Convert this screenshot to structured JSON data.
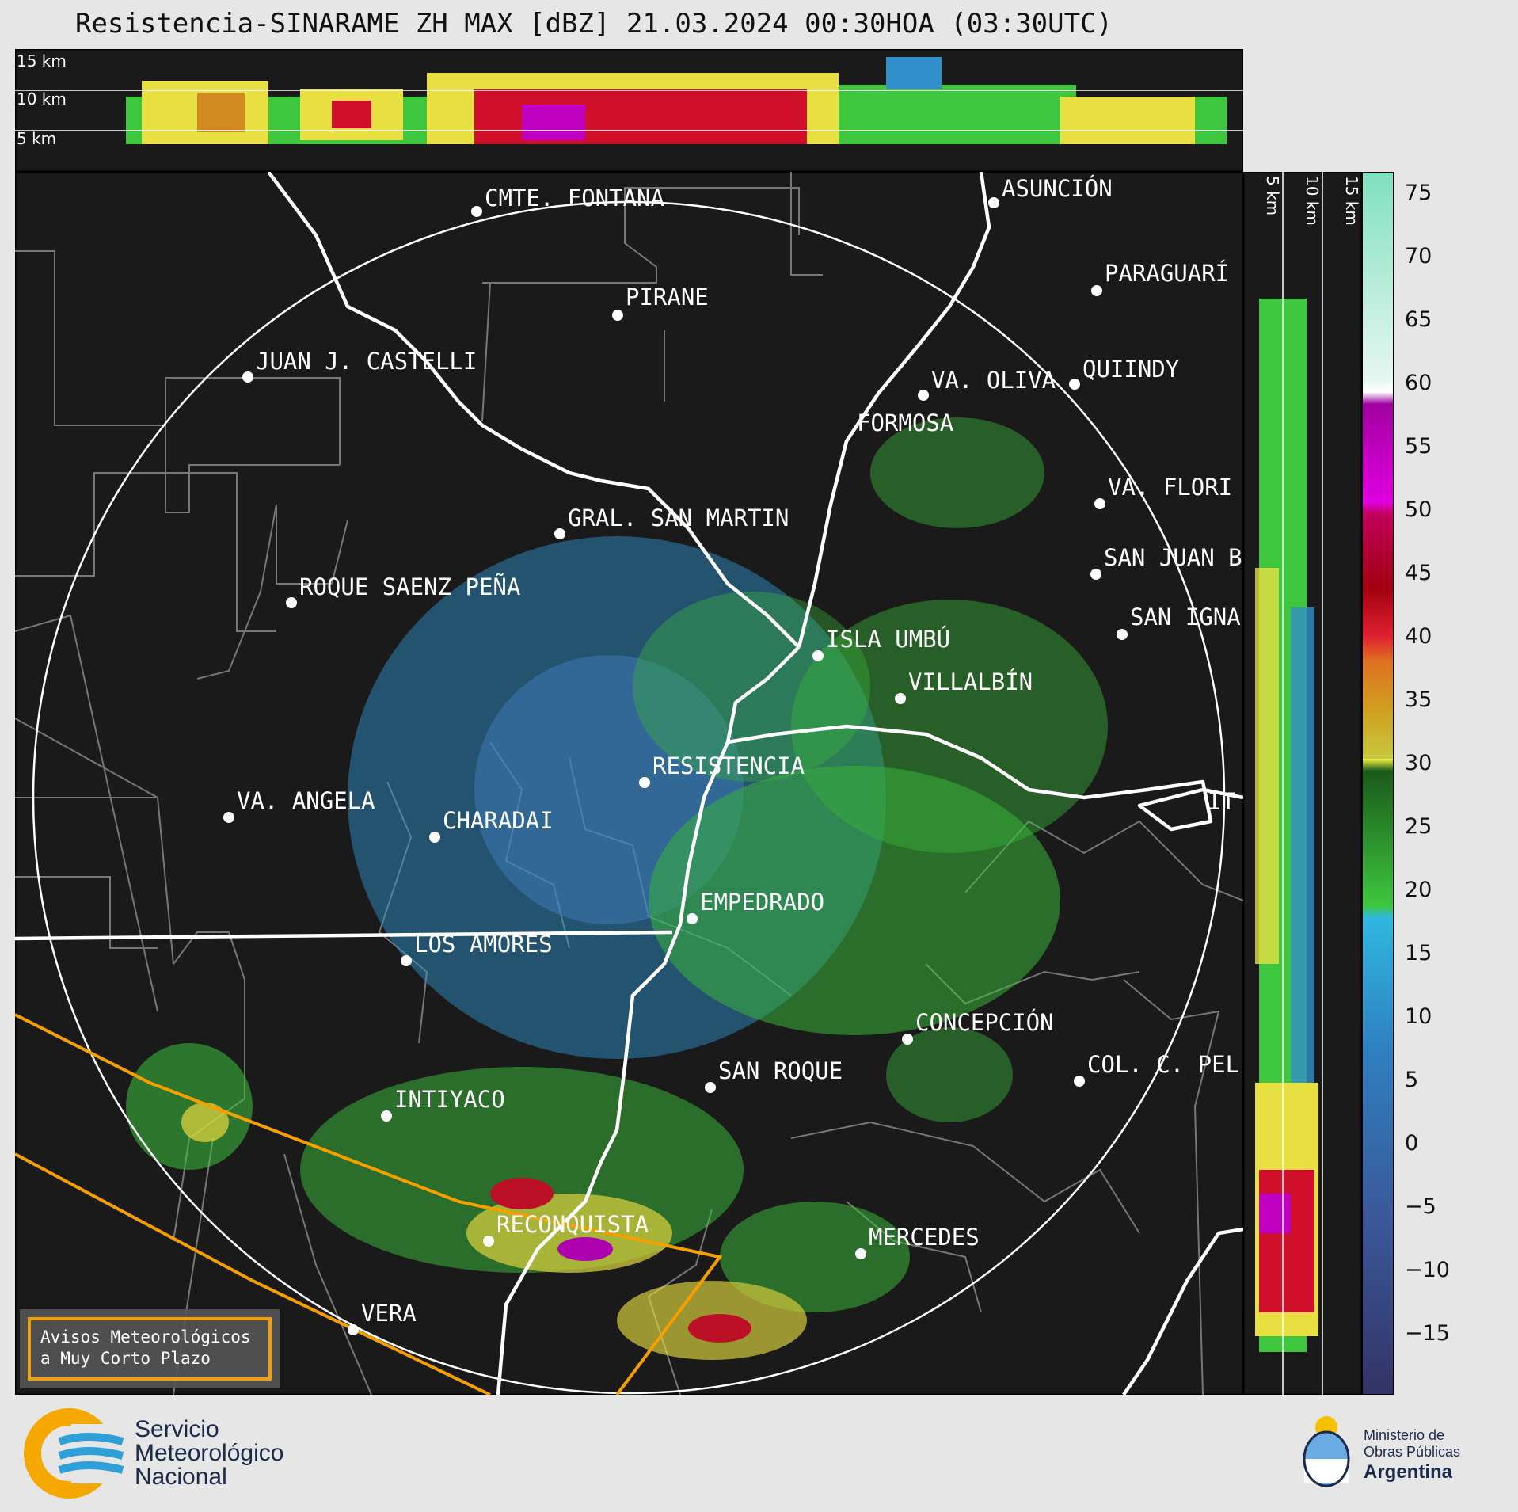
{
  "title": "Resistencia-SINARAME ZH MAX [dBZ] 21.03.2024 00:30HOA (03:30UTC)",
  "top_panel": {
    "height_labels": [
      "15 km",
      "10 km",
      "5 km"
    ]
  },
  "right_panel": {
    "height_labels": [
      "5 km",
      "10 km",
      "15 km"
    ]
  },
  "colorbar": {
    "unit": "dBZ",
    "ticks": [
      "75",
      "70",
      "65",
      "60",
      "55",
      "50",
      "45",
      "40",
      "35",
      "30",
      "25",
      "20",
      "15",
      "10",
      "5",
      "0",
      "−5",
      "−10",
      "−15"
    ],
    "range": [
      -20,
      77
    ]
  },
  "cities": [
    {
      "name": "CMTE. FONTANA",
      "id": "fontana"
    },
    {
      "name": "ASUNCIÓN",
      "id": "asuncion"
    },
    {
      "name": "PARAGUARÍ",
      "id": "paraguari"
    },
    {
      "name": "PIRANE",
      "id": "pirane"
    },
    {
      "name": "JUAN J. CASTELLI",
      "id": "castelli"
    },
    {
      "name": "VA. OLIVA",
      "id": "oliva"
    },
    {
      "name": "QUIINDY",
      "id": "quiindy"
    },
    {
      "name": "FORMOSA",
      "id": "formosa"
    },
    {
      "name": "VA. FLORI",
      "id": "flori"
    },
    {
      "name": "GRAL. SAN MARTIN",
      "id": "sanmartin"
    },
    {
      "name": "SAN JUAN B",
      "id": "sanjuan"
    },
    {
      "name": "ROQUE SAENZ PEÑA",
      "id": "saenzpena"
    },
    {
      "name": "SAN IGNA",
      "id": "sanigna"
    },
    {
      "name": "ISLA UMBÚ",
      "id": "umbu"
    },
    {
      "name": "VILLALBÍN",
      "id": "villalbin"
    },
    {
      "name": "RESISTENCIA",
      "id": "resistencia"
    },
    {
      "name": "VA. ANGELA",
      "id": "angela"
    },
    {
      "name": "CHARADAI",
      "id": "charadai"
    },
    {
      "name": "IT",
      "id": "it"
    },
    {
      "name": "EMPEDRADO",
      "id": "empedrado"
    },
    {
      "name": "LOS AMORES",
      "id": "amores"
    },
    {
      "name": "CONCEPCIÓN",
      "id": "concepcion"
    },
    {
      "name": "COL. C. PEL",
      "id": "pel"
    },
    {
      "name": "SAN ROQUE",
      "id": "sanroque"
    },
    {
      "name": "INTIYACO",
      "id": "intiyaco"
    },
    {
      "name": "RECONQUISTA",
      "id": "reconquista"
    },
    {
      "name": "MERCEDES",
      "id": "mercedes"
    },
    {
      "name": "VERA",
      "id": "vera"
    }
  ],
  "legend_box": {
    "line1": "Avisos Meteorológicos",
    "line2": "a Muy Corto Plazo",
    "color": "#f5a000"
  },
  "footer": {
    "smn": [
      "Servicio",
      "Meteorológico",
      "Nacional"
    ],
    "ministry": [
      "Ministerio de",
      "Obras Públicas",
      "Argentina"
    ]
  },
  "colors": {
    "map_background": "#1a1a1a",
    "border_white": "#ffffff",
    "warning_orange": "#f5a000",
    "blue_echo": "#2f8fc8",
    "green_echo": "#3ec63e",
    "yellow_echo": "#e8e040",
    "red_echo": "#d0102a",
    "magenta_echo": "#c000c0"
  }
}
